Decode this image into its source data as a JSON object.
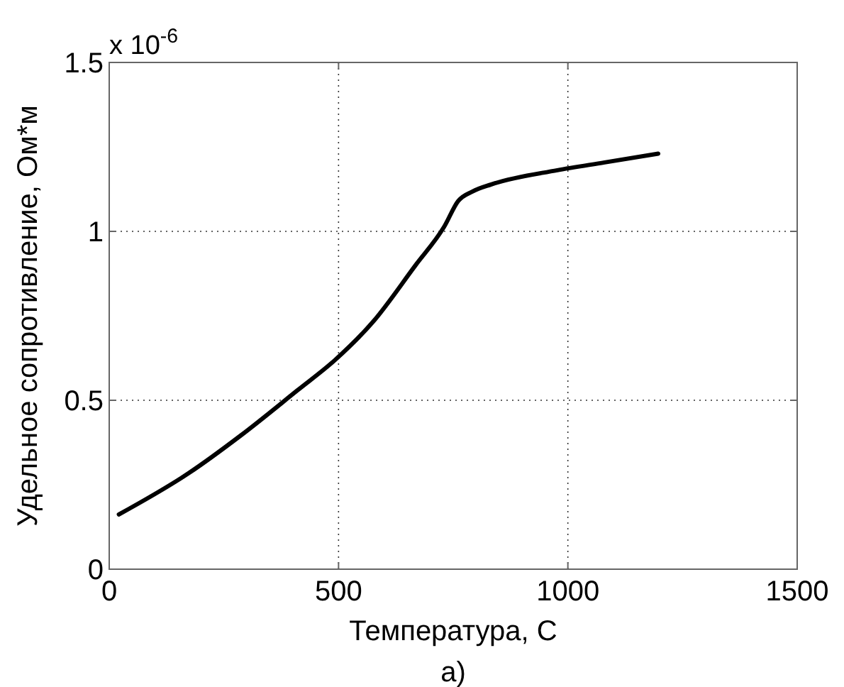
{
  "chart_data": {
    "type": "line",
    "xlabel": "Температура, С",
    "ylabel": "Удельное сопротивление, Ом*м",
    "annotations": [
      "x 10$^{-6}$",
      "a)"
    ],
    "x": [
      21,
      173,
      287,
      410,
      493,
      575,
      668,
      730,
      761,
      792,
      833,
      977,
      1080,
      1197
    ],
    "series": [
      {
        "color": "#000000",
        "values": [
          0.162,
          0.284,
          0.396,
          0.529,
          0.62,
          0.732,
          0.9,
          1.013,
          1.09,
          1.118,
          1.139,
          1.181,
          1.204,
          1.23
        ]
      }
    ],
    "xlim": [
      0,
      1500
    ],
    "xticks": [
      0,
      500,
      1000,
      1500
    ],
    "ylim": [
      0,
      1.5
    ],
    "yticks": [
      0,
      0.5,
      1,
      1.5
    ],
    "grid": true,
    "line_style": "solid",
    "marker": "none"
  }
}
